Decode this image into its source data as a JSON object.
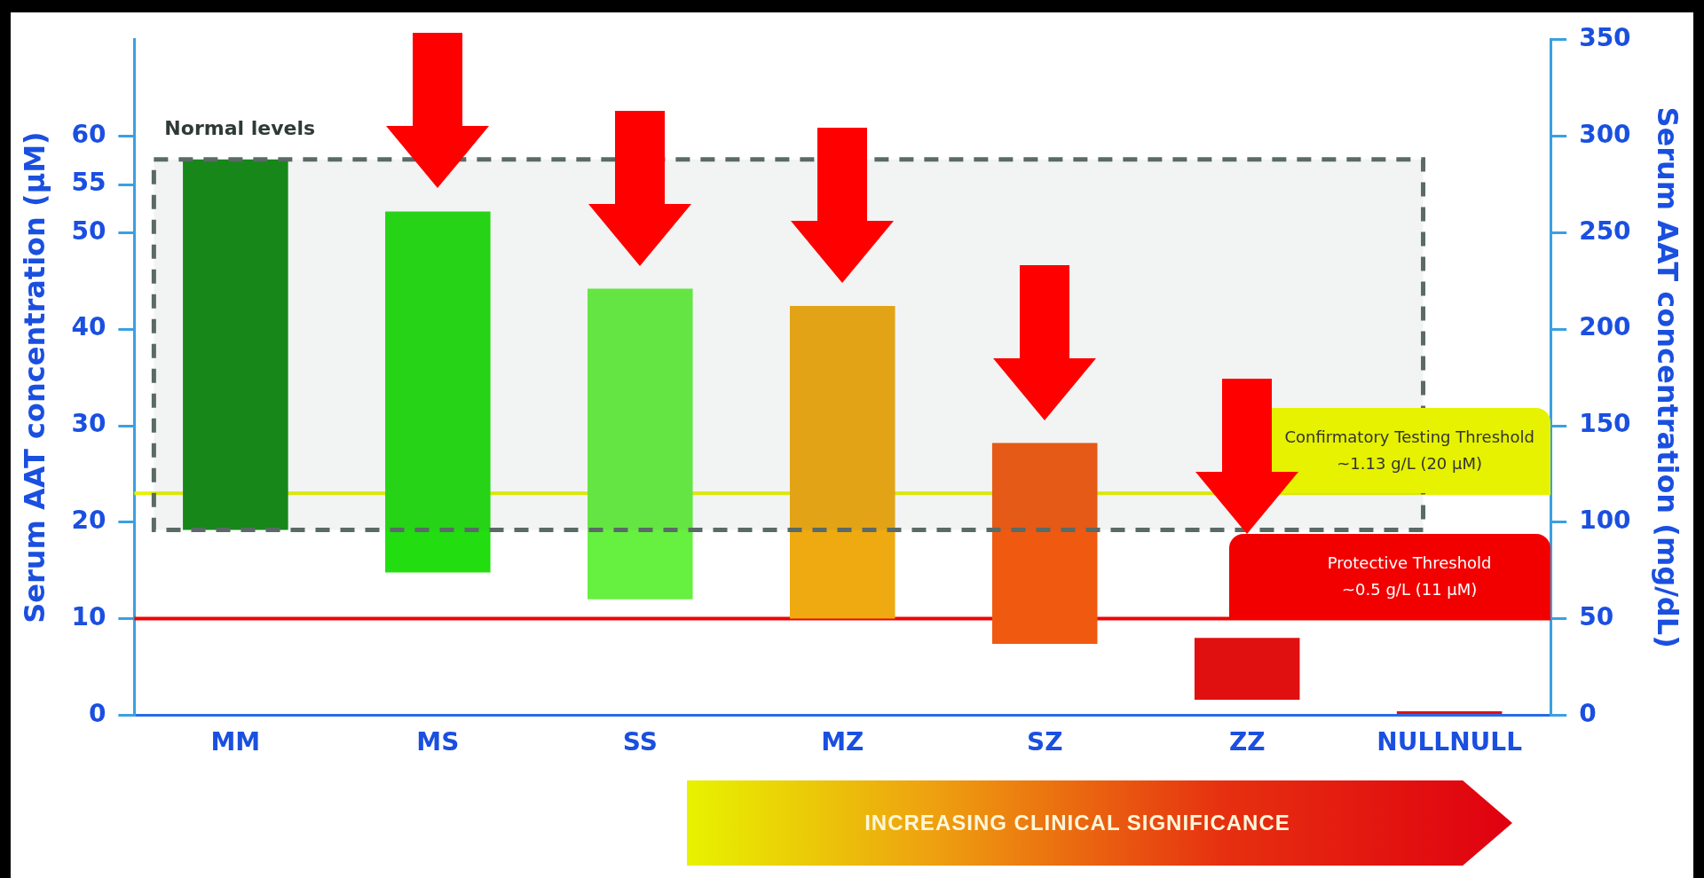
{
  "chart_data": {
    "type": "bar",
    "categories": [
      "MM",
      "MS",
      "SS",
      "MZ",
      "SZ",
      "ZZ",
      "NULLNULL"
    ],
    "series": [
      {
        "values": [
          192,
          187,
          161,
          162,
          104,
          32,
          2
        ],
        "base": [
          96,
          74,
          60,
          50,
          37,
          8,
          0
        ],
        "colors": [
          "#138a13",
          "#22dd10",
          "#66f040",
          "#eeaa10",
          "#f05a10",
          "#e01010",
          "#e01010"
        ],
        "axis": "y2"
      }
    ],
    "ylabel": "Serum AAT concentration (µM)",
    "y2label": "Serum AAT concentration (mg/dL)",
    "ylim": [
      0,
      70
    ],
    "yticks": [
      0,
      10,
      20,
      30,
      40,
      50,
      55,
      60
    ],
    "y2lim": [
      0,
      350
    ],
    "y2ticks": [
      0,
      50,
      100,
      150,
      200,
      250,
      300,
      350
    ],
    "ref_lines": [
      {
        "axis": "y2",
        "value": 115,
        "label": "Confirmatory Testing Threshold\n~1.13 g/L (20 µM)",
        "color": "#e6f200"
      },
      {
        "axis": "y2",
        "value": 50,
        "label": "Protective Threshold\n~0.5 g/L (11 µM)",
        "color": "#f20000"
      }
    ],
    "bands": [
      {
        "axis": "y2",
        "from": 96,
        "to": 288,
        "label": "Normal levels",
        "color": "#5a6a66"
      }
    ],
    "annotations": [
      "INCREASING CLINICAL SIGNIFICANCE"
    ],
    "grid": false,
    "legend": false
  }
}
